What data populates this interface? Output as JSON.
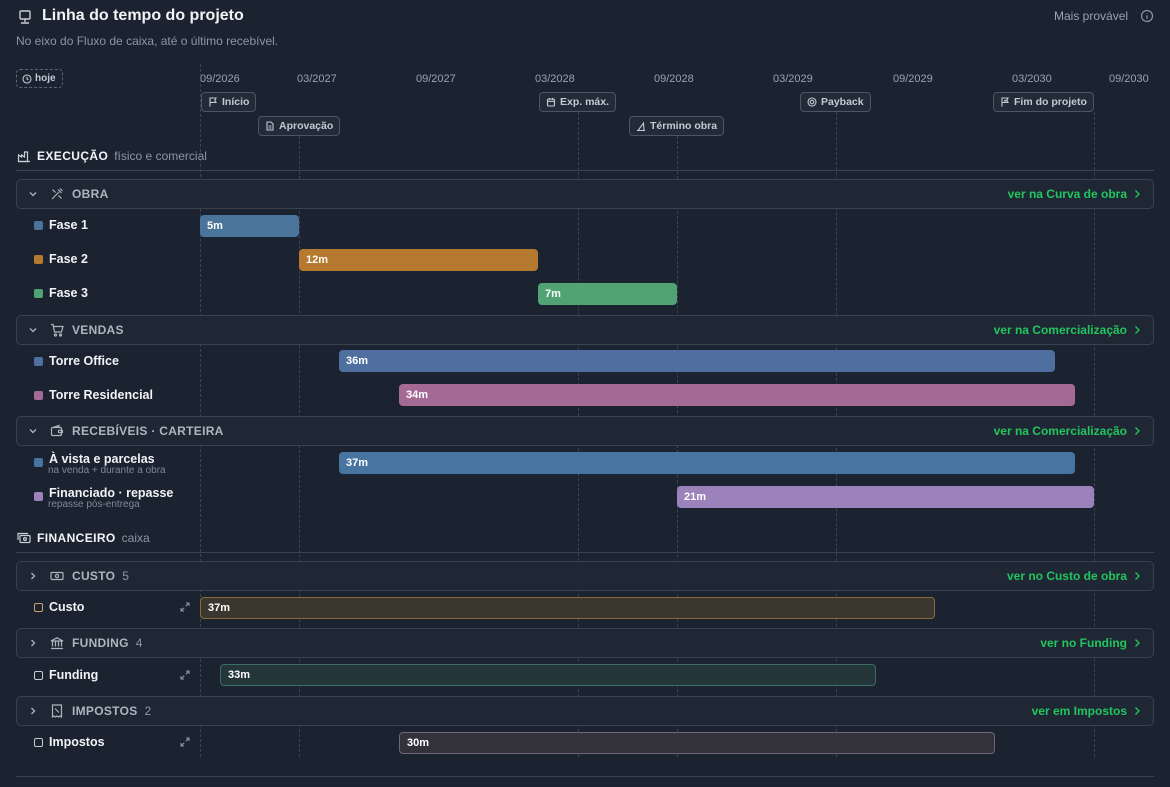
{
  "header": {
    "title": "Linha do tempo do projeto",
    "subtitle": "No eixo do Fluxo de caixa, até o último recebível.",
    "mode": "Mais provável"
  },
  "today_label": "hoje",
  "axis_ticks": [
    "09/2026",
    "03/2027",
    "09/2027",
    "03/2028",
    "09/2028",
    "03/2029",
    "09/2029",
    "03/2030",
    "09/2030"
  ],
  "milestones": [
    {
      "label": "Início",
      "icon": "flag-icon"
    },
    {
      "label": "Aprovação",
      "icon": "document-icon"
    },
    {
      "label": "Exp. máx.",
      "icon": "calendar-icon"
    },
    {
      "label": "Término obra",
      "icon": "building-icon"
    },
    {
      "label": "Payback",
      "icon": "target-icon"
    },
    {
      "label": "Fim do projeto",
      "icon": "flag-check-icon"
    }
  ],
  "execucao": {
    "title": "EXECUÇÃO",
    "subtitle": "físico e comercial",
    "groups": {
      "obra": {
        "label": "OBRA",
        "link": "ver na Curva de obra"
      },
      "vendas": {
        "label": "VENDAS",
        "link": "ver na Comercialização"
      },
      "recebiveis": {
        "label": "RECEBÍVEIS · CARTEIRA",
        "link": "ver na Comercialização"
      }
    },
    "rows": [
      {
        "label": "Fase 1",
        "duration": "5m",
        "color": "#4a7499"
      },
      {
        "label": "Fase 2",
        "duration": "12m",
        "color": "#b57a2f"
      },
      {
        "label": "Fase 3",
        "duration": "7m",
        "color": "#52a374"
      },
      {
        "label": "Torre Office",
        "duration": "36m",
        "color": "#4e6f9f"
      },
      {
        "label": "Torre Residencial",
        "duration": "34m",
        "color": "#a46a95"
      },
      {
        "label": "À vista e parcelas",
        "sub": "na venda + durante a obra",
        "duration": "37m",
        "color": "#4775a0"
      },
      {
        "label": "Financiado · repasse",
        "sub": "repasse pós-entrega",
        "duration": "21m",
        "color": "#9b82bb"
      }
    ]
  },
  "financeiro": {
    "title": "FINANCEIRO",
    "subtitle": "caixa",
    "groups": {
      "custo": {
        "label": "CUSTO",
        "count": "5",
        "link": "ver no Custo de obra"
      },
      "funding": {
        "label": "FUNDING",
        "count": "4",
        "link": "ver no Funding"
      },
      "impostos": {
        "label": "IMPOSTOS",
        "count": "2",
        "link": "ver em Impostos"
      }
    },
    "rows": [
      {
        "label": "Custo",
        "duration": "37m"
      },
      {
        "label": "Funding",
        "duration": "33m"
      },
      {
        "label": "Impostos",
        "duration": "30m"
      }
    ]
  }
}
